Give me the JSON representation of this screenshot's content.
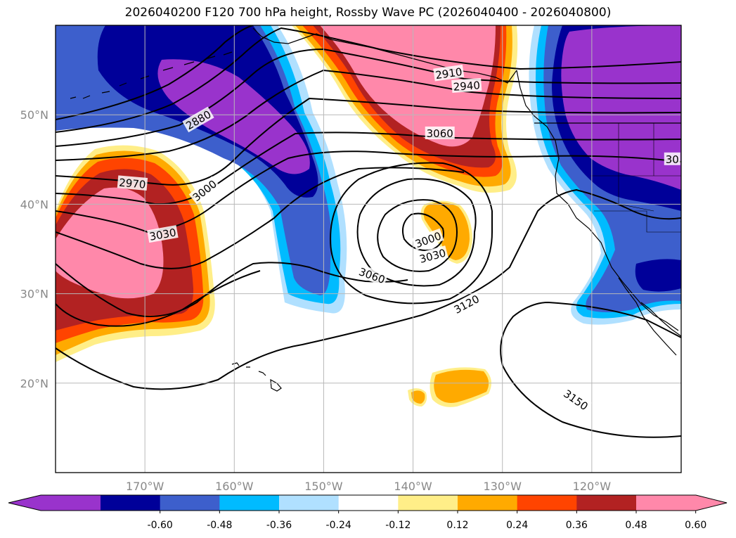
{
  "title": "2026040200 F120 700 hPa height, Rossby Wave PC (2026040400 - 2026040800)",
  "map": {
    "lon_range": [
      -180,
      -110
    ],
    "lat_range": [
      10,
      60
    ],
    "lat_ticks": [
      {
        "value": 20,
        "label": "20°N"
      },
      {
        "value": 30,
        "label": "30°N"
      },
      {
        "value": 40,
        "label": "40°N"
      },
      {
        "value": 50,
        "label": "50°N"
      }
    ],
    "lon_ticks": [
      {
        "value": -170,
        "label": "170°W"
      },
      {
        "value": -160,
        "label": "160°W"
      },
      {
        "value": -150,
        "label": "150°W"
      },
      {
        "value": -140,
        "label": "140°W"
      },
      {
        "value": -130,
        "label": "130°W"
      },
      {
        "value": -120,
        "label": "120°W"
      }
    ],
    "grid": true
  },
  "contour_labels": [
    {
      "text": "2910",
      "lon": -136,
      "lat": 54.6,
      "angle": -8
    },
    {
      "text": "2940",
      "lon": -134,
      "lat": 53.2,
      "angle": -4
    },
    {
      "text": "2880",
      "lon": -164,
      "lat": 49.4,
      "angle": -30
    },
    {
      "text": "2970",
      "lon": -171.4,
      "lat": 42.3,
      "angle": 5
    },
    {
      "text": "3000",
      "lon": -163.3,
      "lat": 41.5,
      "angle": -38
    },
    {
      "text": "3030",
      "lon": -168,
      "lat": 36.6,
      "angle": -10
    },
    {
      "text": "3060",
      "lon": -137,
      "lat": 47.9,
      "angle": 0
    },
    {
      "text": "3000",
      "lon": -138.3,
      "lat": 36,
      "angle": -20
    },
    {
      "text": "3030",
      "lon": -137.8,
      "lat": 34.2,
      "angle": -15
    },
    {
      "text": "3060",
      "lon": -144.6,
      "lat": 32,
      "angle": 20
    },
    {
      "text": "3120",
      "lon": -134,
      "lat": 28.8,
      "angle": -28
    },
    {
      "text": "3150",
      "lon": -121.8,
      "lat": 18.1,
      "angle": 35
    },
    {
      "text": "30",
      "lon": -111,
      "lat": 45,
      "angle": 0
    }
  ],
  "colorbar": {
    "ticks": [
      "-0.60",
      "-0.48",
      "-0.36",
      "-0.24",
      "-0.12",
      "0.12",
      "0.24",
      "0.36",
      "0.48",
      "0.60"
    ],
    "colors": [
      "#9933cc",
      "#000099",
      "#3d5fcc",
      "#00bbff",
      "#b0e0ff",
      "#ffffff",
      "#ffee88",
      "#ffaa00",
      "#ff4400",
      "#b22222",
      "#ff88aa"
    ]
  }
}
